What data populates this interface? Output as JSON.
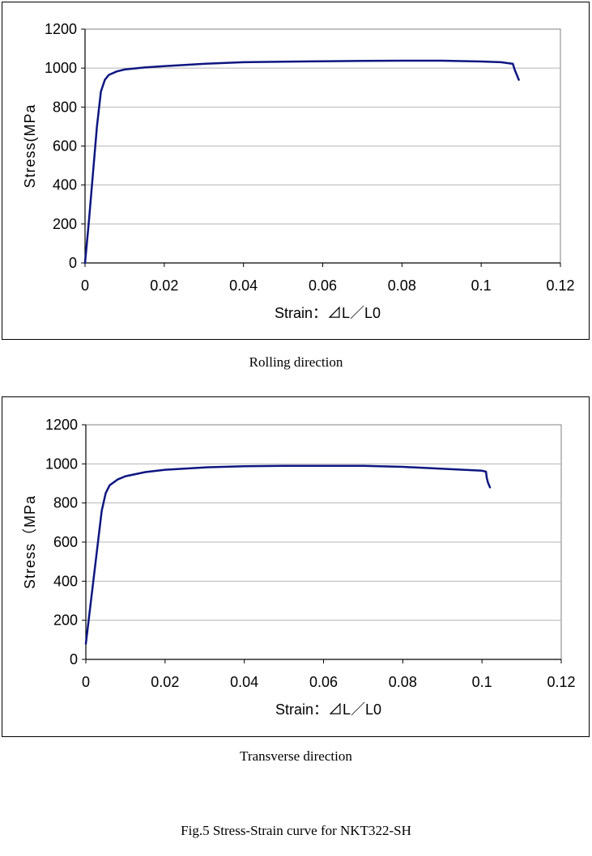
{
  "figure_caption": "Fig.5 Stress-Strain curve for NKT322-SH",
  "colors": {
    "curve": "#0d1680",
    "grid": "#b5b5b5",
    "frame": "#808080"
  },
  "chart_data": [
    {
      "type": "line",
      "caption": "Rolling direction",
      "xlabel": "Strain：⊿L／L0",
      "ylabel": "Stress(MPa",
      "xlim": [
        0,
        0.12
      ],
      "ylim": [
        0,
        1200
      ],
      "xticks": [
        "0",
        "0.02",
        "0.04",
        "0.06",
        "0.08",
        "0.1",
        "0.12"
      ],
      "yticks": [
        "0",
        "200",
        "400",
        "600",
        "800",
        "1000",
        "1200"
      ],
      "grid": true,
      "series": [
        {
          "x": [
            0,
            0.001,
            0.002,
            0.003,
            0.004,
            0.005,
            0.006,
            0.008,
            0.01,
            0.015,
            0.02,
            0.03,
            0.04,
            0.05,
            0.06,
            0.07,
            0.08,
            0.09,
            0.1,
            0.105,
            0.108,
            0.1085,
            0.109,
            0.1095
          ],
          "y": [
            0,
            220,
            460,
            700,
            880,
            940,
            965,
            983,
            993,
            1003,
            1010,
            1022,
            1030,
            1033,
            1035,
            1037,
            1038,
            1038,
            1034,
            1030,
            1022,
            990,
            965,
            940
          ]
        }
      ]
    },
    {
      "type": "line",
      "caption": "Transverse direction",
      "xlabel": "Strain：⊿L／L0",
      "ylabel": "Stress（MPa",
      "xlim": [
        0,
        0.12
      ],
      "ylim": [
        0,
        1200
      ],
      "xticks": [
        "0",
        "0.02",
        "0.04",
        "0.06",
        "0.08",
        "0.1",
        "0.12"
      ],
      "yticks": [
        "0",
        "200",
        "400",
        "600",
        "800",
        "1000",
        "1200"
      ],
      "grid": true,
      "series": [
        {
          "x": [
            0,
            0.001,
            0.002,
            0.003,
            0.004,
            0.005,
            0.006,
            0.008,
            0.01,
            0.015,
            0.02,
            0.03,
            0.04,
            0.05,
            0.06,
            0.07,
            0.08,
            0.09,
            0.1,
            0.101,
            0.1012,
            0.1015,
            0.102
          ],
          "y": [
            80,
            250,
            420,
            590,
            760,
            850,
            890,
            920,
            937,
            958,
            970,
            982,
            988,
            990,
            990,
            990,
            985,
            975,
            965,
            960,
            930,
            905,
            880
          ]
        }
      ]
    }
  ]
}
